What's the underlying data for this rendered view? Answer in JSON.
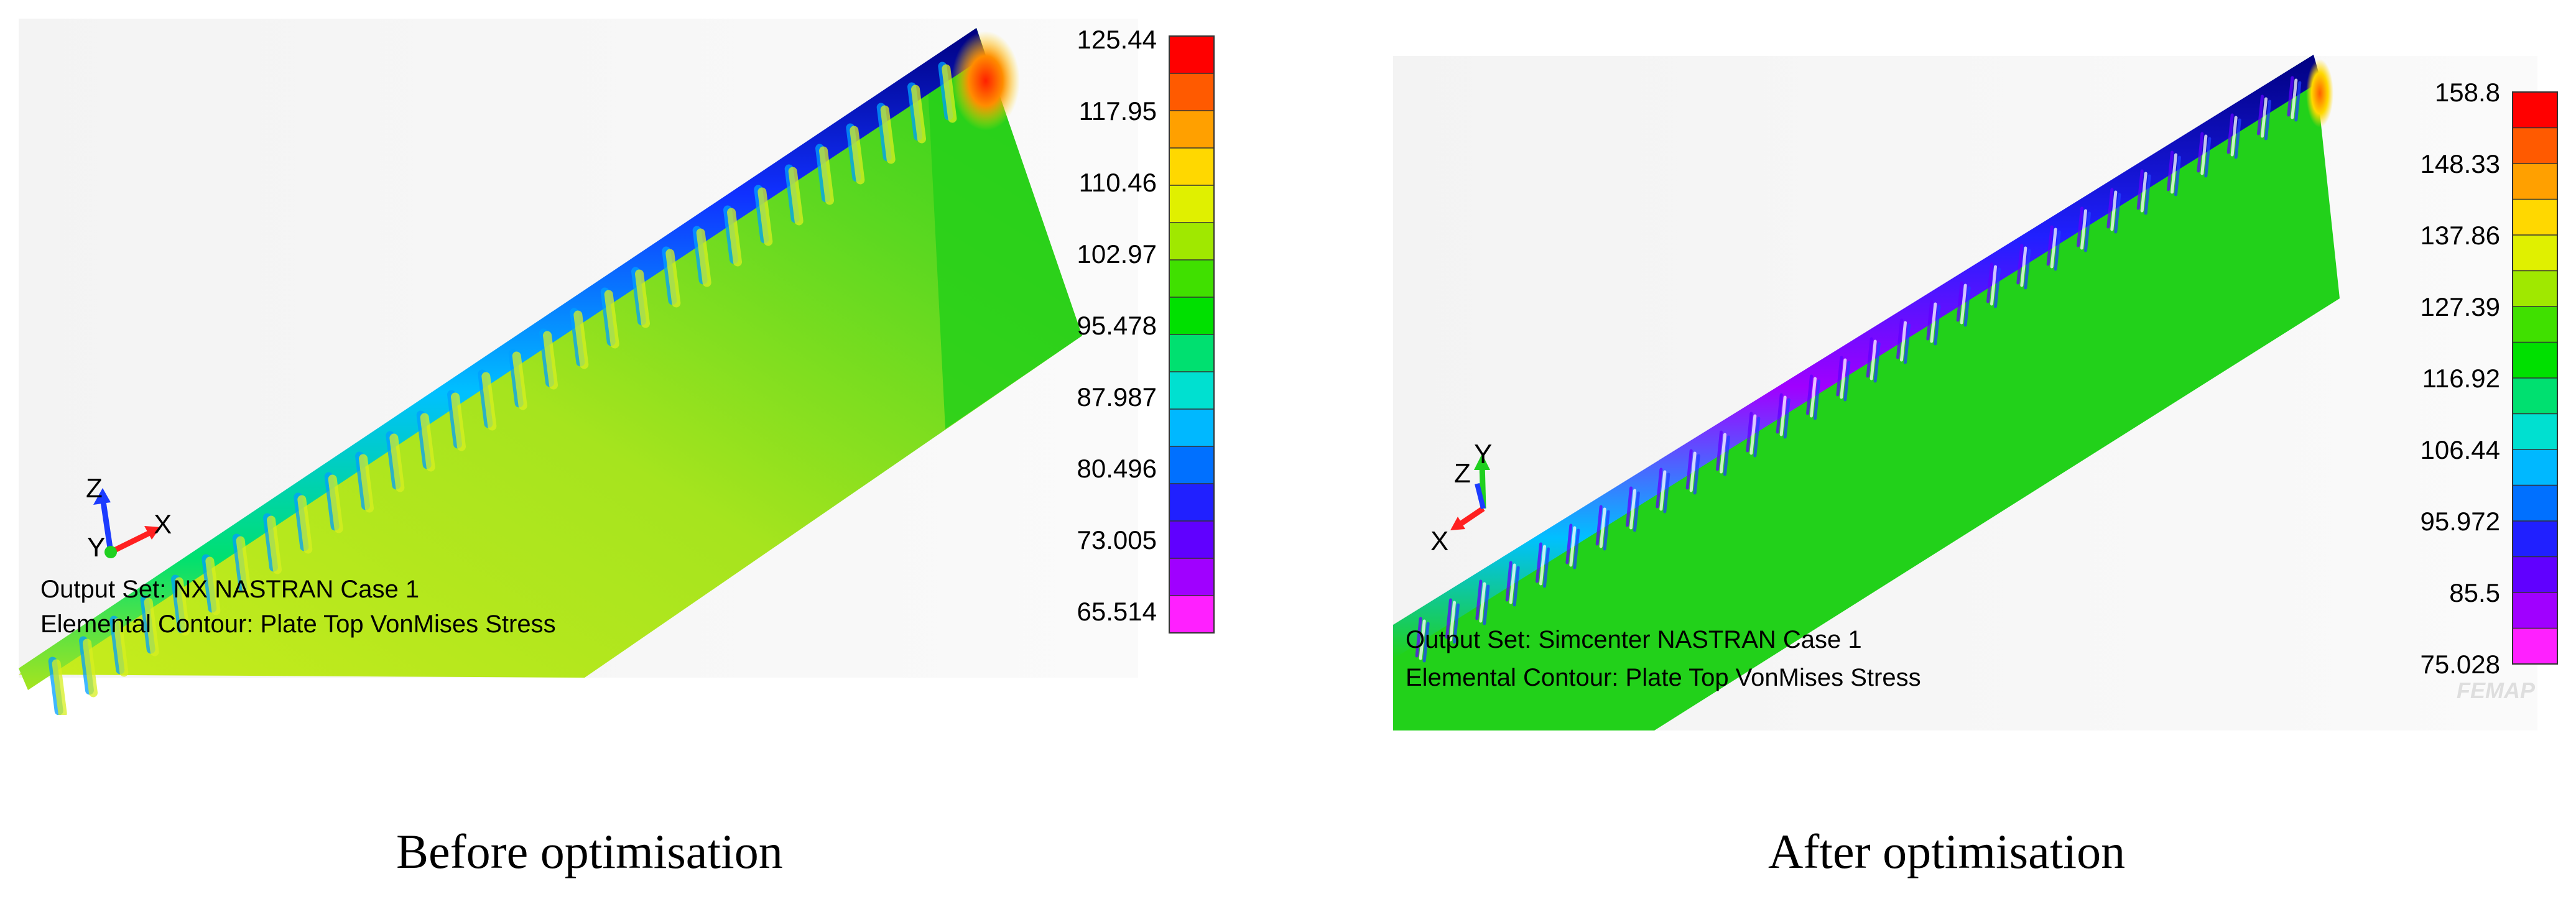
{
  "panels": [
    {
      "legend_values": [
        "125.44",
        "117.95",
        "110.46",
        "102.97",
        "95.478",
        "87.987",
        "80.496",
        "73.005",
        "65.514"
      ],
      "info": {
        "output_set": "Output Set: NX NASTRAN Case 1",
        "contour": "Elemental Contour: Plate Top VonMises Stress"
      },
      "axes": {
        "x": "X",
        "y": "Y",
        "z": "Z"
      },
      "caption": "Before optimisation"
    },
    {
      "legend_values": [
        "158.8",
        "148.33",
        "137.86",
        "127.39",
        "116.92",
        "106.44",
        "95.972",
        "85.5",
        "75.028"
      ],
      "info": {
        "output_set": "Output Set: Simcenter NASTRAN Case 1",
        "contour": "Elemental Contour: Plate Top VonMises Stress"
      },
      "axes": {
        "x": "X",
        "y": "Y",
        "z": "Z"
      },
      "caption": "After optimisation",
      "watermark": "FEMAP"
    }
  ],
  "colors": {
    "scale": [
      "#ff0000",
      "#ff5a00",
      "#ffa000",
      "#ffd800",
      "#e0f000",
      "#a0e800",
      "#40e000",
      "#00e000",
      "#00e070",
      "#00e0d0",
      "#00b8ff",
      "#0070ff",
      "#2020ff",
      "#6000ff",
      "#a000ff",
      "#ff20ff"
    ],
    "green": "#22d11a",
    "yellow_green": "#b8ea1e"
  }
}
